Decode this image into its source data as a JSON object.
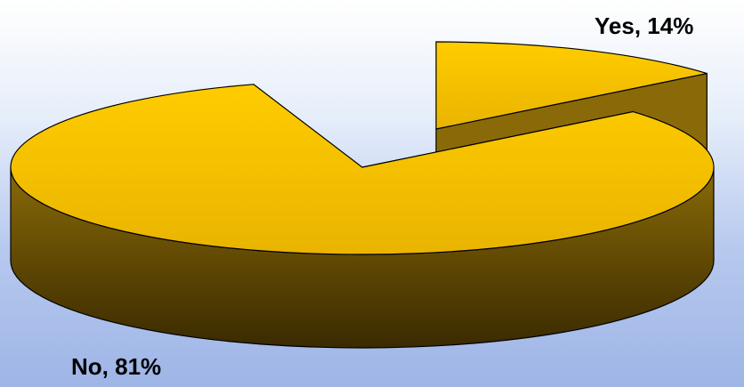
{
  "chart_data": {
    "type": "pie",
    "style": "3d-exploded",
    "labels": [
      "Yes",
      "No"
    ],
    "values": [
      14,
      81
    ],
    "data_labels": [
      "Yes, 14%",
      "No, 81%"
    ],
    "title": "",
    "legend": "none",
    "colors": {
      "top_fill": "#ffcc00",
      "top_fill_dark": "#e9b400",
      "side_light": "#8a6a08",
      "side_dark": "#3a2a00",
      "outline": "#000000"
    }
  }
}
